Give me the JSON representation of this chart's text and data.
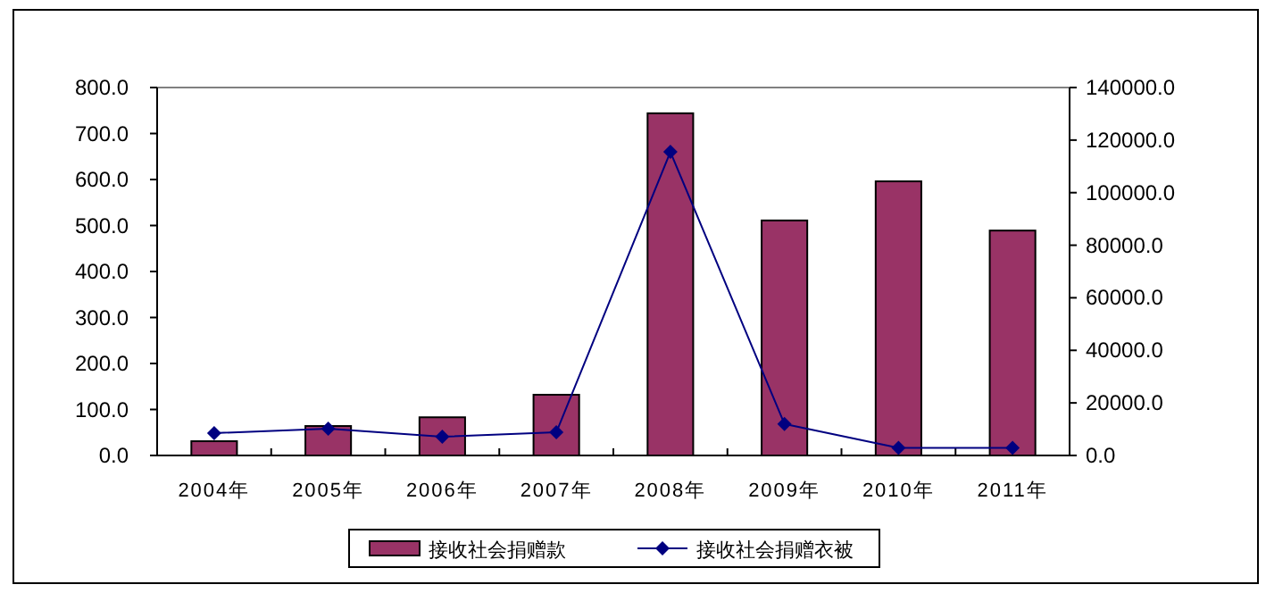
{
  "chart_data": {
    "type": "bar",
    "categories": [
      "2004年",
      "2005年",
      "2006年",
      "2007年",
      "2008年",
      "2009年",
      "2010年",
      "2011年"
    ],
    "series": [
      {
        "name": "接收社会捐赠款",
        "color": "#993366",
        "values": [
          31,
          64,
          83,
          132,
          744,
          511,
          596,
          489
        ]
      },
      {
        "name": "接收社会捐赠衣被",
        "type": "line",
        "axis": "y2",
        "color": "#000080",
        "marker": "diamond",
        "values": [
          8500,
          10200,
          7100,
          8800,
          115500,
          12000,
          2900,
          2900
        ]
      }
    ],
    "ylim": [
      0,
      800
    ],
    "yticks": [
      {
        "value": 0,
        "label": "0.0"
      },
      {
        "value": 100,
        "label": "100.0"
      },
      {
        "value": 200,
        "label": "200.0"
      },
      {
        "value": 300,
        "label": "300.0"
      },
      {
        "value": 400,
        "label": "400.0"
      },
      {
        "value": 500,
        "label": "500.0"
      },
      {
        "value": 600,
        "label": "600.0"
      },
      {
        "value": 700,
        "label": "700.0"
      },
      {
        "value": 800,
        "label": "800.0"
      }
    ],
    "y2lim": [
      0,
      140000
    ],
    "y2ticks": [
      {
        "value": 0,
        "label": "0.0"
      },
      {
        "value": 20000,
        "label": "20000.0"
      },
      {
        "value": 40000,
        "label": "40000.0"
      },
      {
        "value": 60000,
        "label": "60000.0"
      },
      {
        "value": 80000,
        "label": "80000.0"
      },
      {
        "value": 100000,
        "label": "100000.0"
      },
      {
        "value": 120000,
        "label": "120000.0"
      },
      {
        "value": 140000,
        "label": "140000.0"
      }
    ],
    "legend": "bottom",
    "grid": false
  }
}
